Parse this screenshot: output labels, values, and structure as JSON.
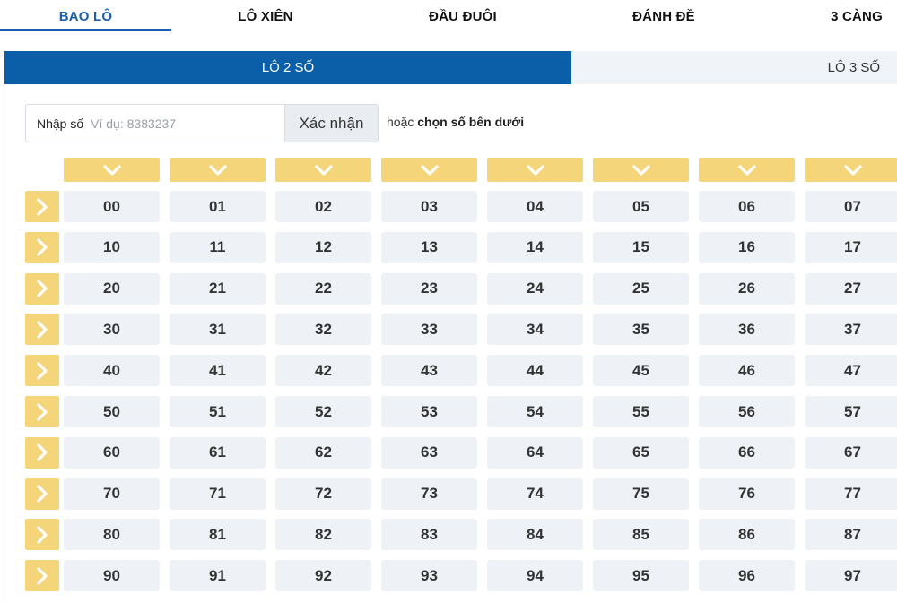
{
  "top_tabs": [
    {
      "label": "BAO LÔ",
      "active": true
    },
    {
      "label": "LÔ XIÊN",
      "active": false
    },
    {
      "label": "ĐẦU ĐUÔI",
      "active": false
    },
    {
      "label": "ĐÁNH ĐỀ",
      "active": false
    },
    {
      "label": "3 CÀNG",
      "active": false
    }
  ],
  "sub_tabs": [
    {
      "label": "LÔ 2 SỐ",
      "active": true
    },
    {
      "label": "LÔ 3 SỐ",
      "active": false
    }
  ],
  "input": {
    "label": "Nhập số",
    "placeholder": "Ví dụ: 8383237",
    "value": ""
  },
  "confirm_button": "Xác nhận",
  "hint": {
    "prefix": "hoặc",
    "bold": "chọn số bên dưới"
  },
  "icons": {
    "column_select": "chevron-down-icon",
    "row_select": "chevron-right-icon"
  },
  "colors": {
    "accent": "#0b5ea8",
    "tab_active": "#1a5fa6",
    "select_button": "#f5d57a",
    "number_cell": "#eef2f6"
  },
  "grid": {
    "rows": [
      [
        "00",
        "01",
        "02",
        "03",
        "04",
        "05",
        "06",
        "07"
      ],
      [
        "10",
        "11",
        "12",
        "13",
        "14",
        "15",
        "16",
        "17"
      ],
      [
        "20",
        "21",
        "22",
        "23",
        "24",
        "25",
        "26",
        "27"
      ],
      [
        "30",
        "31",
        "32",
        "33",
        "34",
        "35",
        "36",
        "37"
      ],
      [
        "40",
        "41",
        "42",
        "43",
        "44",
        "45",
        "46",
        "47"
      ],
      [
        "50",
        "51",
        "52",
        "53",
        "54",
        "55",
        "56",
        "57"
      ],
      [
        "60",
        "61",
        "62",
        "63",
        "64",
        "65",
        "66",
        "67"
      ],
      [
        "70",
        "71",
        "72",
        "73",
        "74",
        "75",
        "76",
        "77"
      ],
      [
        "80",
        "81",
        "82",
        "83",
        "84",
        "85",
        "86",
        "87"
      ],
      [
        "90",
        "91",
        "92",
        "93",
        "94",
        "95",
        "96",
        "97"
      ]
    ]
  }
}
